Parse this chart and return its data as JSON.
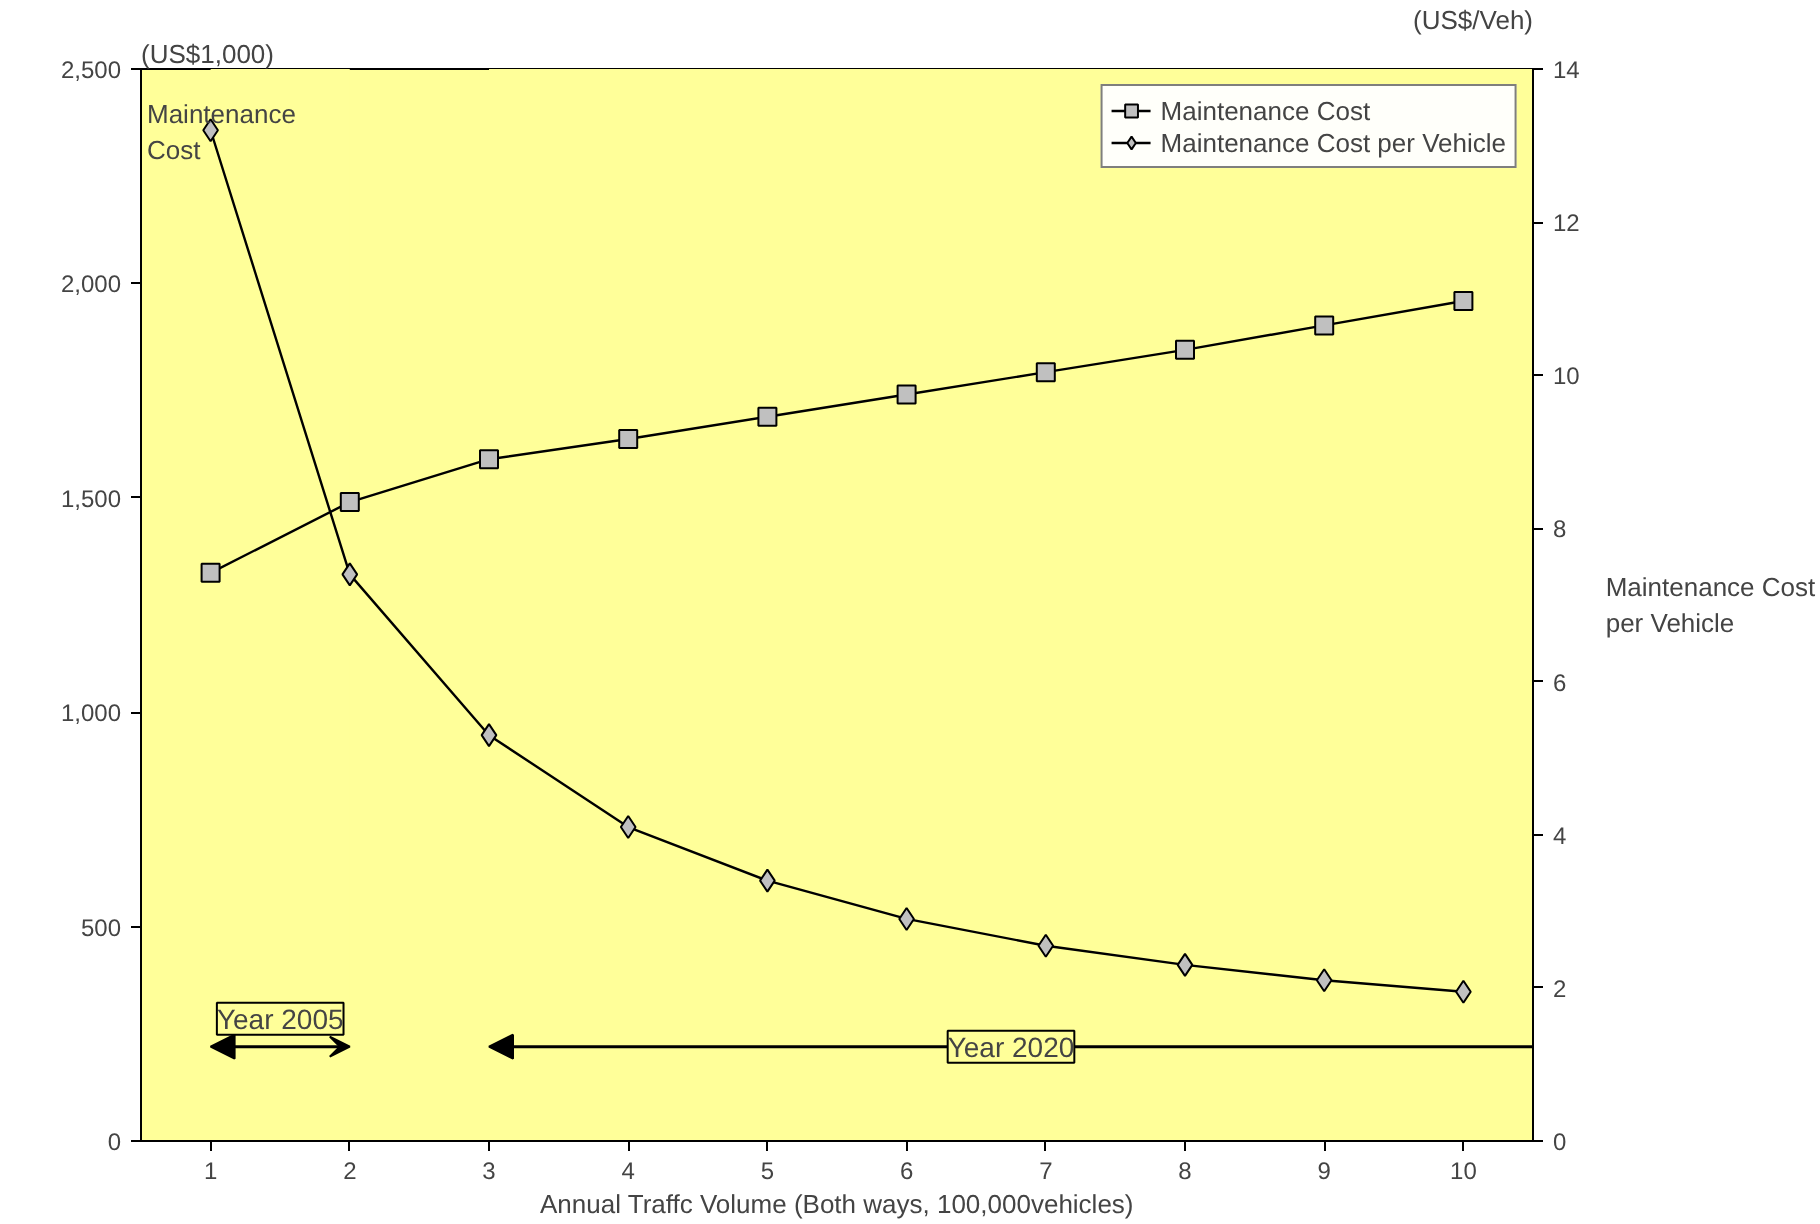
{
  "chart_data": {
    "type": "line",
    "ylabel": "Maintenance Cost",
    "y2label": "Maintenance Cost per Vehicle",
    "xlabel": "Annual Traffc Volume (Both ways, 100,000vehicles)",
    "annotations": [
      "(US$1,000)",
      "(US$/Veh)"
    ],
    "x": [
      1,
      2,
      3,
      4,
      5,
      6,
      7,
      8,
      9,
      10
    ],
    "series": [
      {
        "name": "Maintenance Cost",
        "color": "#000000",
        "marker": "square",
        "values": [
          1325,
          1490,
          1590,
          1637,
          1689,
          1741,
          1793,
          1845,
          1902,
          1959
        ]
      },
      {
        "name": "Maintenance Cost per Vehicle",
        "color": "#000000",
        "marker": "diamond",
        "axis": "y2",
        "values": [
          13.2,
          7.4,
          5.3,
          4.1,
          3.4,
          2.9,
          2.55,
          2.3,
          2.1,
          1.95
        ]
      }
    ],
    "xlim": [
      0.5,
      10.5
    ],
    "xticks": [
      1,
      2,
      3,
      4,
      5,
      6,
      7,
      8,
      9,
      10
    ],
    "ylim": [
      0,
      2500
    ],
    "yticks": [
      0,
      500,
      {
        "value": 1000,
        "label": "1,000"
      },
      {
        "value": 1500,
        "label": "1,500"
      },
      {
        "value": 2000,
        "label": "2,000"
      },
      {
        "value": 2500,
        "label": "2,500"
      }
    ],
    "y2lim": [
      0,
      14
    ],
    "y2ticks": [
      0,
      2,
      4,
      6,
      8,
      10,
      12,
      14
    ],
    "bands": [
      {
        "axis": "x",
        "from": 1,
        "to": 2,
        "label": "Year 2005",
        "color": "#ffff99"
      },
      {
        "axis": "x",
        "from": 3,
        "to": 10.5,
        "label": "Year 2020",
        "color": "#ffff99"
      }
    ],
    "legend": "top right",
    "grid": false
  }
}
